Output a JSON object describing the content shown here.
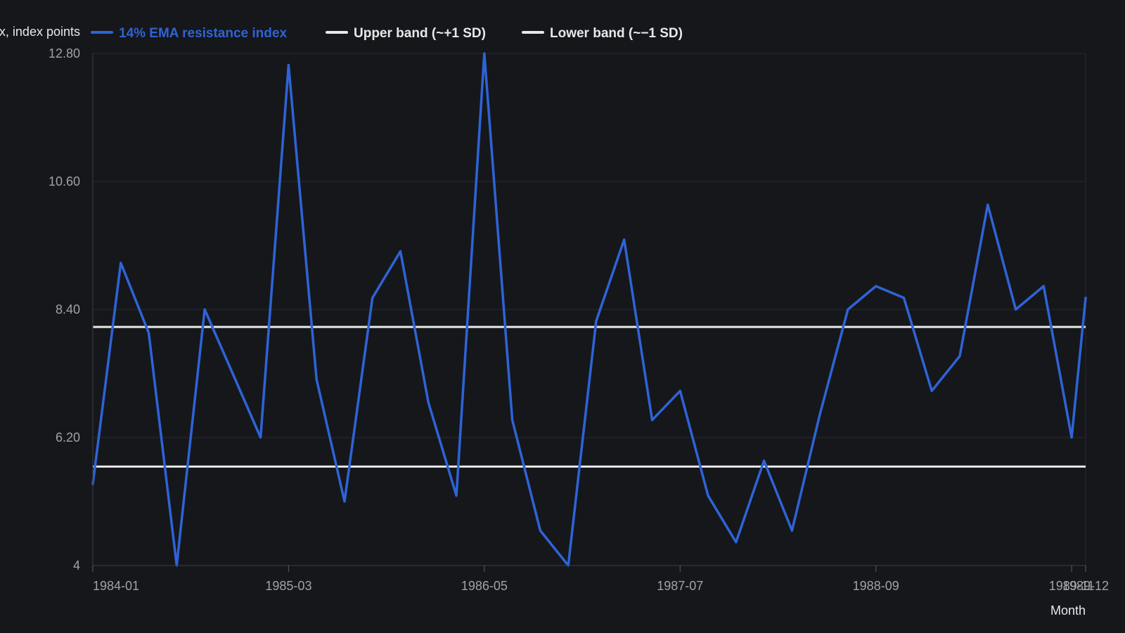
{
  "chart_data": {
    "type": "line",
    "title": "",
    "ylabel": "Index, index points",
    "xlabel": "Month",
    "ylim": [
      4,
      12.8
    ],
    "yticks": [
      "4",
      "6.20",
      "8.40",
      "10.60",
      "12.80"
    ],
    "xticks": [
      "1984-01",
      "1985-03",
      "1986-05",
      "1987-07",
      "1988-09",
      "1989-11",
      "1989-12"
    ],
    "x": [
      "1984-01",
      "1984-02",
      "1984-03",
      "1984-04",
      "1984-05",
      "1984-06",
      "1984-07",
      "1984-08",
      "1984-09",
      "1984-10",
      "1984-11",
      "1984-12",
      "1985-01",
      "1985-02",
      "1985-03",
      "1985-04",
      "1985-05",
      "1985-06",
      "1985-07",
      "1985-08",
      "1985-09",
      "1985-10",
      "1985-11",
      "1985-12",
      "1986-01",
      "1986-02",
      "1986-03",
      "1986-04",
      "1986-05",
      "1986-06",
      "1986-07",
      "1986-08",
      "1986-09",
      "1986-10",
      "1986-11",
      "1986-12",
      "1987-01",
      "1987-02",
      "1987-03",
      "1987-04",
      "1987-05",
      "1987-06",
      "1987-07",
      "1987-08",
      "1987-09",
      "1987-10",
      "1987-11",
      "1987-12",
      "1988-01",
      "1988-02",
      "1988-03",
      "1988-04",
      "1988-05",
      "1988-06",
      "1988-07",
      "1988-08",
      "1988-09",
      "1988-10",
      "1988-11",
      "1988-12",
      "1989-01",
      "1989-02",
      "1989-03",
      "1989-04",
      "1989-05",
      "1989-06",
      "1989-07",
      "1989-08",
      "1989-09",
      "1989-10",
      "1989-11",
      "1989-12"
    ],
    "series": [
      {
        "name": "14% EMA resistance index",
        "color": "#2f63d6",
        "x": [
          "1984-01",
          "1984-03",
          "1984-05",
          "1984-07",
          "1984-09",
          "1984-11",
          "1985-01",
          "1985-03",
          "1985-05",
          "1985-07",
          "1985-09",
          "1985-11",
          "1986-01",
          "1986-03",
          "1986-05",
          "1986-07",
          "1986-09",
          "1986-11",
          "1987-01",
          "1987-03",
          "1987-05",
          "1987-07",
          "1987-09",
          "1987-11",
          "1988-01",
          "1988-03",
          "1988-05",
          "1988-07",
          "1988-09",
          "1988-11",
          "1989-01",
          "1989-03",
          "1989-05",
          "1989-07",
          "1989-09",
          "1989-11",
          "1989-12"
        ],
        "values": [
          5.4,
          9.2,
          8.0,
          4.0,
          8.4,
          7.3,
          6.2,
          12.6,
          7.2,
          5.1,
          8.6,
          9.4,
          6.8,
          5.2,
          12.8,
          6.5,
          4.6,
          4.0,
          8.2,
          9.6,
          6.5,
          7.0,
          5.2,
          4.4,
          5.8,
          4.6,
          6.6,
          8.4,
          8.8,
          8.6,
          7.0,
          7.6,
          10.2,
          8.4,
          8.8,
          6.2,
          8.6
        ]
      },
      {
        "name": "Upper band (~+1 SD)",
        "color": "#e8e8e8",
        "value": 8.1
      },
      {
        "name": "Lower band (~−1 SD)",
        "color": "#e8e8e8",
        "value": 5.7
      }
    ],
    "grid": true,
    "legend_position": "top-left"
  }
}
